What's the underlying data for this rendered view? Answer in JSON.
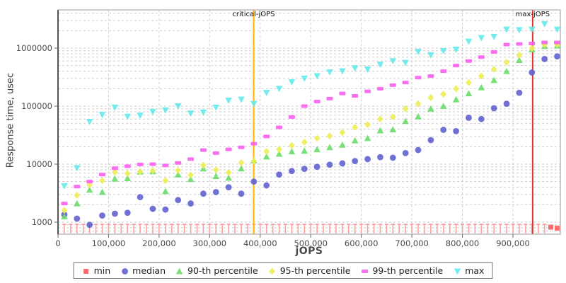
{
  "chart_data": {
    "type": "scatter",
    "title": "",
    "xlabel": "jOPS",
    "ylabel": "Response time, usec",
    "x_axis": {
      "min": 0,
      "max": 994000,
      "ticks": [
        0,
        100000,
        200000,
        300000,
        400000,
        500000,
        600000,
        700000,
        800000,
        900000
      ],
      "tick_labels": [
        "0",
        "100,000",
        "200,000",
        "300,000",
        "400,000",
        "500,000",
        "600,000",
        "700,000",
        "800,000",
        "900,000"
      ]
    },
    "y_axis": {
      "scale": "log",
      "min": 650,
      "max": 4500000,
      "ticks": [
        1000,
        10000,
        100000,
        1000000
      ],
      "tick_labels": [
        "1000",
        "10000",
        "100000",
        "1000000"
      ]
    },
    "grid": {
      "show": true,
      "x_interval": 100000,
      "y_minor": "log decades 1-9",
      "color": "#cdcdcd",
      "style": "dashed"
    },
    "legend_position": "bottom",
    "annotations": [
      {
        "label": "critical-jOPS",
        "x": 387000,
        "color": "#ffb400"
      },
      {
        "label": "max-jOPS",
        "x": 939000,
        "color": "#e62e2e"
      }
    ],
    "series": [
      {
        "name": "min",
        "marker": "square",
        "color": "#ff5c5c",
        "fence_color": "#ffa0a0",
        "note": "most min values fall below the visible axis and are rendered as clipped ticks along the plot bottom",
        "clipped_run": {
          "x_start": 12500,
          "x_end": 962500,
          "x_step": 12500
        },
        "points": [
          [
            975000,
            820
          ],
          [
            987500,
            790
          ]
        ]
      },
      {
        "name": "median",
        "marker": "circle",
        "color": "#6060d0",
        "points": [
          [
            12500,
            1350
          ],
          [
            37500,
            1150
          ],
          [
            62500,
            900
          ],
          [
            87500,
            1300
          ],
          [
            112500,
            1400
          ],
          [
            137500,
            1450
          ],
          [
            162500,
            2700
          ],
          [
            187500,
            1700
          ],
          [
            212500,
            1650
          ],
          [
            237500,
            2400
          ],
          [
            262500,
            2100
          ],
          [
            287500,
            3100
          ],
          [
            312500,
            3300
          ],
          [
            337500,
            4000
          ],
          [
            362500,
            3100
          ],
          [
            387500,
            5000
          ],
          [
            412500,
            4300
          ],
          [
            437500,
            6600
          ],
          [
            462500,
            7600
          ],
          [
            487500,
            8300
          ],
          [
            512500,
            9000
          ],
          [
            537500,
            9800
          ],
          [
            562500,
            10300
          ],
          [
            587500,
            11300
          ],
          [
            612500,
            12200
          ],
          [
            637500,
            13200
          ],
          [
            662500,
            12900
          ],
          [
            687500,
            15500
          ],
          [
            712500,
            17500
          ],
          [
            737500,
            26000
          ],
          [
            762500,
            39000
          ],
          [
            787500,
            37000
          ],
          [
            812500,
            63000
          ],
          [
            837500,
            60000
          ],
          [
            862500,
            92000
          ],
          [
            887500,
            110000
          ],
          [
            912500,
            170000
          ],
          [
            937500,
            380000
          ],
          [
            962500,
            650000
          ],
          [
            987500,
            720000
          ]
        ]
      },
      {
        "name": "90-th percentile",
        "marker": "triangle-up",
        "color": "#68dd68",
        "points": [
          [
            12500,
            1250
          ],
          [
            37500,
            2100
          ],
          [
            62500,
            3600
          ],
          [
            87500,
            3300
          ],
          [
            112500,
            5600
          ],
          [
            137500,
            5700
          ],
          [
            162500,
            7400
          ],
          [
            187500,
            7500
          ],
          [
            212500,
            3400
          ],
          [
            237500,
            6600
          ],
          [
            262500,
            5500
          ],
          [
            287500,
            8400
          ],
          [
            312500,
            6200
          ],
          [
            337500,
            5800
          ],
          [
            362500,
            8400
          ],
          [
            387500,
            11500
          ],
          [
            412500,
            13500
          ],
          [
            437500,
            15000
          ],
          [
            462500,
            16500
          ],
          [
            487500,
            17000
          ],
          [
            512500,
            18000
          ],
          [
            537500,
            19500
          ],
          [
            562500,
            21500
          ],
          [
            587500,
            25500
          ],
          [
            612500,
            28000
          ],
          [
            637500,
            38000
          ],
          [
            662500,
            39500
          ],
          [
            687500,
            55000
          ],
          [
            712500,
            66000
          ],
          [
            737500,
            90000
          ],
          [
            762500,
            100000
          ],
          [
            787500,
            130000
          ],
          [
            812500,
            165000
          ],
          [
            837500,
            210000
          ],
          [
            862500,
            280000
          ],
          [
            887500,
            400000
          ],
          [
            912500,
            620000
          ],
          [
            937500,
            950000
          ],
          [
            962500,
            1080000
          ],
          [
            987500,
            1100000
          ]
        ]
      },
      {
        "name": "95-th percentile",
        "marker": "diamond",
        "color": "#eded55",
        "points": [
          [
            12500,
            1600
          ],
          [
            37500,
            2900
          ],
          [
            62500,
            4400
          ],
          [
            87500,
            5200
          ],
          [
            112500,
            7300
          ],
          [
            137500,
            6900
          ],
          [
            162500,
            7400
          ],
          [
            187500,
            7700
          ],
          [
            212500,
            5200
          ],
          [
            237500,
            7800
          ],
          [
            262500,
            6500
          ],
          [
            287500,
            9600
          ],
          [
            312500,
            8000
          ],
          [
            337500,
            7200
          ],
          [
            362500,
            10600
          ],
          [
            387500,
            11300
          ],
          [
            412500,
            16500
          ],
          [
            437500,
            18000
          ],
          [
            462500,
            21000
          ],
          [
            487500,
            24000
          ],
          [
            512500,
            28000
          ],
          [
            537500,
            30500
          ],
          [
            562500,
            35000
          ],
          [
            587500,
            43000
          ],
          [
            612500,
            48000
          ],
          [
            637500,
            60000
          ],
          [
            662500,
            65000
          ],
          [
            687500,
            90000
          ],
          [
            712500,
            110000
          ],
          [
            737500,
            140000
          ],
          [
            762500,
            160000
          ],
          [
            787500,
            200000
          ],
          [
            812500,
            255000
          ],
          [
            837500,
            330000
          ],
          [
            862500,
            430000
          ],
          [
            887500,
            570000
          ],
          [
            912500,
            760000
          ],
          [
            937500,
            1000000
          ],
          [
            962500,
            1150000
          ],
          [
            987500,
            1150000
          ]
        ]
      },
      {
        "name": "99-th percentile",
        "marker": "hbar",
        "color": "#fa5ff0",
        "points": [
          [
            12500,
            2100
          ],
          [
            37500,
            4100
          ],
          [
            62500,
            5000
          ],
          [
            87500,
            6600
          ],
          [
            112500,
            8500
          ],
          [
            137500,
            9200
          ],
          [
            162500,
            9900
          ],
          [
            187500,
            10000
          ],
          [
            212500,
            9500
          ],
          [
            237500,
            10500
          ],
          [
            262500,
            12200
          ],
          [
            287500,
            17500
          ],
          [
            312500,
            15500
          ],
          [
            337500,
            18000
          ],
          [
            362500,
            19500
          ],
          [
            387500,
            22500
          ],
          [
            412500,
            30000
          ],
          [
            437500,
            43000
          ],
          [
            462500,
            65000
          ],
          [
            487500,
            100000
          ],
          [
            512500,
            120000
          ],
          [
            537500,
            135000
          ],
          [
            562500,
            165000
          ],
          [
            587500,
            150000
          ],
          [
            612500,
            180000
          ],
          [
            637500,
            200000
          ],
          [
            662500,
            230000
          ],
          [
            687500,
            255000
          ],
          [
            712500,
            310000
          ],
          [
            737500,
            330000
          ],
          [
            762500,
            400000
          ],
          [
            787500,
            500000
          ],
          [
            812500,
            600000
          ],
          [
            837500,
            700000
          ],
          [
            862500,
            860000
          ],
          [
            887500,
            1150000
          ],
          [
            912500,
            1180000
          ],
          [
            937500,
            1200000
          ],
          [
            962500,
            1250000
          ],
          [
            987500,
            1250000
          ]
        ]
      },
      {
        "name": "max",
        "marker": "triangle-down",
        "color": "#62e9e9",
        "points": [
          [
            12500,
            4200
          ],
          [
            37500,
            8600
          ],
          [
            62500,
            54000
          ],
          [
            87500,
            71000
          ],
          [
            112500,
            95000
          ],
          [
            137500,
            66000
          ],
          [
            162500,
            69000
          ],
          [
            187500,
            80000
          ],
          [
            212500,
            85000
          ],
          [
            237500,
            100000
          ],
          [
            262500,
            75000
          ],
          [
            287500,
            78000
          ],
          [
            312500,
            95000
          ],
          [
            337500,
            125000
          ],
          [
            362500,
            130000
          ],
          [
            387500,
            110000
          ],
          [
            412500,
            170000
          ],
          [
            437500,
            200000
          ],
          [
            462500,
            260000
          ],
          [
            487500,
            300000
          ],
          [
            512500,
            330000
          ],
          [
            537500,
            385000
          ],
          [
            562500,
            400000
          ],
          [
            587500,
            450000
          ],
          [
            612500,
            430000
          ],
          [
            637500,
            520000
          ],
          [
            662500,
            600000
          ],
          [
            687500,
            560000
          ],
          [
            712500,
            870000
          ],
          [
            737500,
            760000
          ],
          [
            762500,
            895000
          ],
          [
            787500,
            945000
          ],
          [
            812500,
            1300000
          ],
          [
            837500,
            1500000
          ],
          [
            862500,
            1570000
          ],
          [
            887500,
            2100000
          ],
          [
            912500,
            2050000
          ],
          [
            937500,
            2100000
          ],
          [
            962500,
            2600000
          ],
          [
            987500,
            2100000
          ]
        ]
      }
    ]
  }
}
